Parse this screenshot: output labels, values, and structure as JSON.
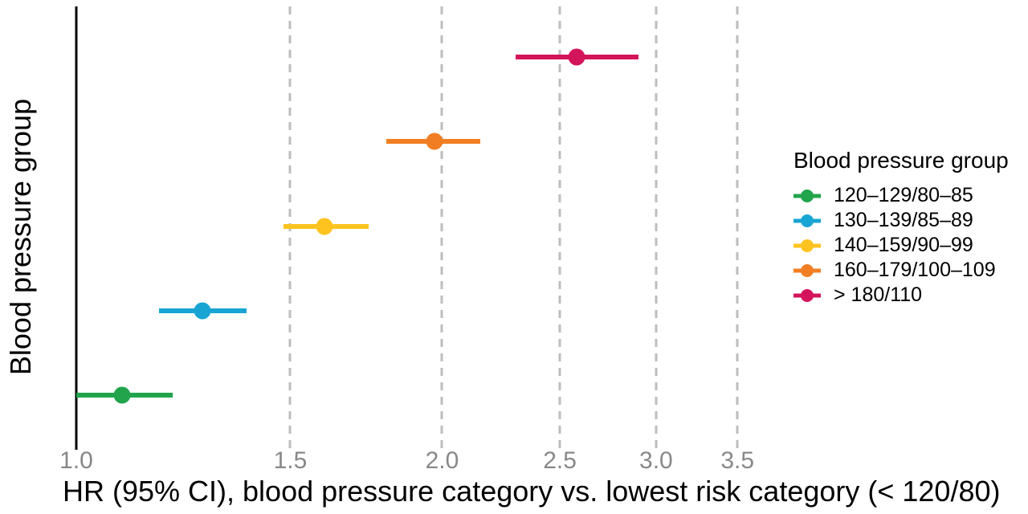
{
  "chart_data": {
    "type": "scatter",
    "subtype": "forest-plot-dot-with-ci",
    "xlabel": "HR (95% CI), blood pressure category vs. lowest risk category (< 120/80)",
    "ylabel": "Blood pressure group",
    "x_scale": "log",
    "xlim": [
      1.0,
      3.73
    ],
    "reference_line": 1.0,
    "grid": "vertical-dashed",
    "x_ticks": [
      {
        "value": 1.0,
        "label": "1.0"
      },
      {
        "value": 1.5,
        "label": "1.5"
      },
      {
        "value": 2.0,
        "label": "2.0"
      },
      {
        "value": 2.5,
        "label": "2.5"
      },
      {
        "value": 3.0,
        "label": "3.0"
      },
      {
        "value": 3.5,
        "label": "3.5"
      }
    ],
    "legend_title": "Blood pressure group",
    "legend_position": "right",
    "series": [
      {
        "label": "> 180/110",
        "color": "#D4145A",
        "hr": 2.58,
        "ci": [
          2.3,
          2.9
        ]
      },
      {
        "label": "160–179/100–109",
        "color": "#F17E22",
        "hr": 1.97,
        "ci": [
          1.8,
          2.15
        ]
      },
      {
        "label": "140–159/90–99",
        "color": "#FFC320",
        "hr": 1.6,
        "ci": [
          1.48,
          1.74
        ]
      },
      {
        "label": "130–139/85–89",
        "color": "#18A5D4",
        "hr": 1.27,
        "ci": [
          1.17,
          1.38
        ]
      },
      {
        "label": "120–129/80–85",
        "color": "#21A44C",
        "hr": 1.09,
        "ci": [
          1.0,
          1.2
        ]
      }
    ]
  },
  "colors": {
    "background": "#FFFFFF",
    "grid_dashed": "#BDBDBD",
    "reference_line": "#000000",
    "tick_label": "#888888",
    "text": "#000000"
  }
}
